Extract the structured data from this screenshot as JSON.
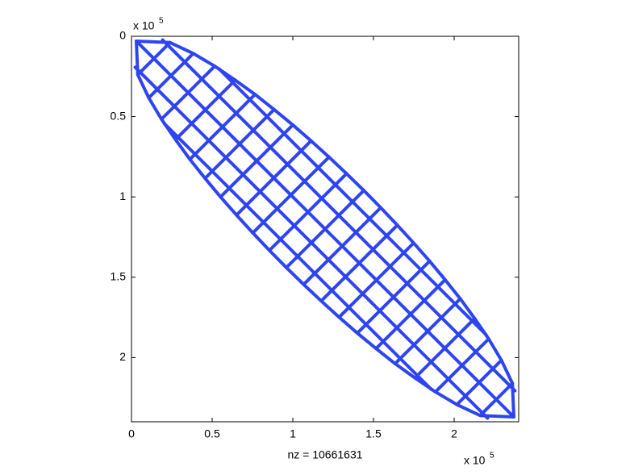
{
  "chart_data": {
    "type": "spy",
    "xlabel": "nz = 10661631",
    "x_scale_label": {
      "base": "x 10",
      "exponent": "5"
    },
    "y_scale_label": {
      "base": "x 10",
      "exponent": "5"
    },
    "xlim": [
      0,
      2.4
    ],
    "ylim": [
      0,
      2.4
    ],
    "y_reversed": true,
    "xticks": [
      0,
      0.5,
      1,
      1.5,
      2
    ],
    "yticks": [
      0,
      0.5,
      1,
      1.5,
      2
    ],
    "color": "#2e44f2",
    "series": [
      {
        "x": [
          0.03,
          0.239,
          0.383,
          0.516,
          0.643,
          0.766,
          0.884,
          1.0,
          1.113,
          1.224,
          1.333,
          1.44,
          1.545,
          1.648,
          1.749,
          1.848,
          1.944,
          2.038,
          2.127,
          2.214,
          2.293,
          2.361,
          2.37
        ],
        "y": [
          0.03,
          0.039,
          0.107,
          0.186,
          0.273,
          0.362,
          0.456,
          0.552,
          0.651,
          0.752,
          0.855,
          0.96,
          1.067,
          1.176,
          1.287,
          1.4,
          1.516,
          1.634,
          1.757,
          1.884,
          2.017,
          2.161,
          2.37
        ]
      },
      {
        "x": [
          0.03,
          0.039,
          0.107,
          0.186,
          0.273,
          0.362,
          0.456,
          0.552,
          0.651,
          0.752,
          0.855,
          0.96,
          1.067,
          1.176,
          1.287,
          1.4,
          1.516,
          1.634,
          1.757,
          1.884,
          2.017,
          2.161,
          2.37
        ],
        "y": [
          0.03,
          0.239,
          0.383,
          0.516,
          0.643,
          0.766,
          0.884,
          1.0,
          1.113,
          1.224,
          1.333,
          1.44,
          1.545,
          1.648,
          1.749,
          1.848,
          1.944,
          2.038,
          2.127,
          2.214,
          2.293,
          2.361,
          2.37
        ]
      },
      {
        "x": [
          0.03,
          2.37
        ],
        "y": [
          0.03,
          2.37
        ]
      },
      {
        "x": [
          0.193,
          2.377
        ],
        "y": [
          0.023,
          2.207
        ]
      },
      {
        "x": [
          0.023,
          2.207
        ],
        "y": [
          0.193,
          2.377
        ]
      },
      {
        "x": [
          0.543,
          2.197
        ],
        "y": [
          0.203,
          1.857
        ]
      },
      {
        "x": [
          0.203,
          1.857
        ],
        "y": [
          0.543,
          2.197
        ]
      },
      {
        "x": [
          0.239,
          0.039
        ],
        "y": [
          0.039,
          0.239
        ]
      },
      {
        "x": [
          0.383,
          0.107
        ],
        "y": [
          0.107,
          0.383
        ]
      },
      {
        "x": [
          0.516,
          0.186
        ],
        "y": [
          0.186,
          0.516
        ]
      },
      {
        "x": [
          0.643,
          0.273
        ],
        "y": [
          0.273,
          0.643
        ]
      },
      {
        "x": [
          0.766,
          0.362
        ],
        "y": [
          0.362,
          0.766
        ]
      },
      {
        "x": [
          0.884,
          0.456
        ],
        "y": [
          0.456,
          0.884
        ]
      },
      {
        "x": [
          1.0,
          0.552
        ],
        "y": [
          0.552,
          1.0
        ]
      },
      {
        "x": [
          1.113,
          0.651
        ],
        "y": [
          0.651,
          1.113
        ]
      },
      {
        "x": [
          1.224,
          0.752
        ],
        "y": [
          0.752,
          1.224
        ]
      },
      {
        "x": [
          1.333,
          0.855
        ],
        "y": [
          0.855,
          1.333
        ]
      },
      {
        "x": [
          1.44,
          0.96
        ],
        "y": [
          0.96,
          1.44
        ]
      },
      {
        "x": [
          1.545,
          1.067
        ],
        "y": [
          1.067,
          1.545
        ]
      },
      {
        "x": [
          1.648,
          1.176
        ],
        "y": [
          1.176,
          1.648
        ]
      },
      {
        "x": [
          1.749,
          1.287
        ],
        "y": [
          1.287,
          1.749
        ]
      },
      {
        "x": [
          1.848,
          1.4
        ],
        "y": [
          1.4,
          1.848
        ]
      },
      {
        "x": [
          1.944,
          1.516
        ],
        "y": [
          1.516,
          1.944
        ]
      },
      {
        "x": [
          2.038,
          1.634
        ],
        "y": [
          1.634,
          2.038
        ]
      },
      {
        "x": [
          2.127,
          1.757
        ],
        "y": [
          1.757,
          2.127
        ]
      },
      {
        "x": [
          2.214,
          1.884
        ],
        "y": [
          1.884,
          2.214
        ]
      },
      {
        "x": [
          2.293,
          2.017
        ],
        "y": [
          2.017,
          2.293
        ]
      },
      {
        "x": [
          2.361,
          2.161
        ],
        "y": [
          2.161,
          2.361
        ]
      }
    ]
  }
}
